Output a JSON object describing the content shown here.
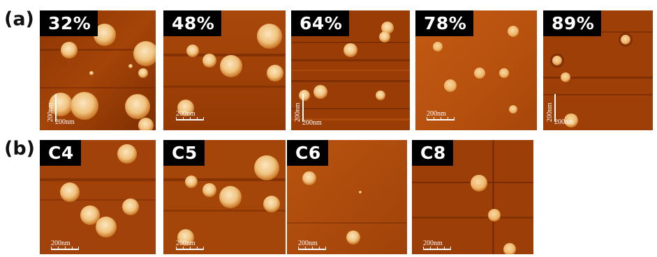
{
  "figure": {
    "row_a_label": "(a)",
    "row_b_label": "(b)",
    "scale_label": "200nm",
    "row_a": [
      {
        "tag": "32%"
      },
      {
        "tag": "48%"
      },
      {
        "tag": "64%"
      },
      {
        "tag": "78%"
      },
      {
        "tag": "89%"
      }
    ],
    "row_b": [
      {
        "tag": "C4"
      },
      {
        "tag": "C5"
      },
      {
        "tag": "C6"
      },
      {
        "tag": "C8"
      }
    ]
  },
  "colors": {
    "background_dark": "#7a2a02",
    "background_mid": "#b4500f",
    "particle": "#f6d7a0",
    "label_bg": "#000000",
    "label_text": "#ffffff"
  }
}
